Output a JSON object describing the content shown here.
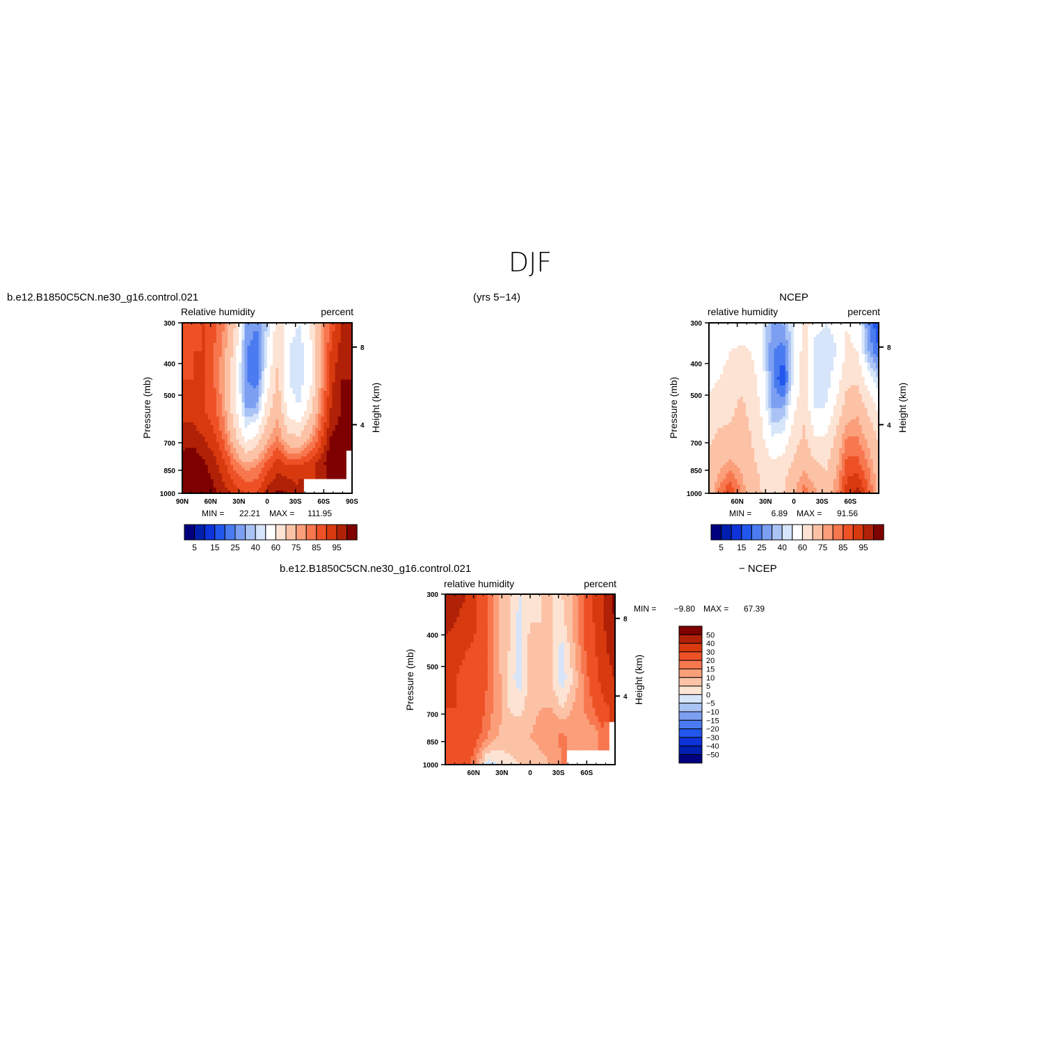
{
  "page": {
    "title": "DJF",
    "case_name": "b.e12.B1850C5CN.ne30_g16.control.021",
    "years": "(yrs 5−14)"
  },
  "colors": {
    "abs_scale": [
      "#00007f",
      "#001fae",
      "#0d33d9",
      "#2257ed",
      "#4a7bf0",
      "#7c9ff2",
      "#aac3f5",
      "#d6e5fa",
      "#ffffff",
      "#fde3d3",
      "#fcc2a6",
      "#fb9e7a",
      "#f7774f",
      "#ee5126",
      "#d83a0f",
      "#b02107",
      "#7f0000"
    ],
    "diff_scale": [
      "#00007f",
      "#001fae",
      "#0d33d9",
      "#2257ed",
      "#4a7bf0",
      "#7c9ff2",
      "#aac3f5",
      "#d6e5fa",
      "#fde3d3",
      "#fcc2a6",
      "#fb9e7a",
      "#f7774f",
      "#ee5126",
      "#d83a0f",
      "#b02107",
      "#7f0000"
    ]
  },
  "chart_data": [
    {
      "type": "heatmap",
      "id": "model",
      "left_title": "b.e12.B1850C5CN.ne30_g16.control.021",
      "center_title": "",
      "subtitle_left": "Relative  humidity",
      "subtitle_right": "percent",
      "ylabel": "Pressure  (mb)",
      "ylabel_right": "Height  (km)",
      "x_ticks": [
        "90N",
        "60N",
        "30N",
        "0",
        "30S",
        "60S",
        "90S"
      ],
      "y_ticks": [
        "300",
        "400",
        "500",
        "700",
        "850",
        "1000"
      ],
      "y_right_ticks": [
        "8",
        "4"
      ],
      "stats": {
        "min_label": "MIN  =",
        "min": "22.21",
        "max_label": "MAX  =",
        "max": "111.95"
      },
      "colorbar_labels": [
        "5",
        "15",
        "25",
        "40",
        "60",
        "75",
        "85",
        "95"
      ],
      "grid_values": [
        [
          80,
          82,
          85,
          82,
          75,
          60,
          30,
          25,
          35,
          55,
          45,
          40,
          50,
          70,
          82,
          90,
          92
        ],
        [
          82,
          85,
          85,
          80,
          72,
          55,
          25,
          22,
          40,
          60,
          40,
          35,
          45,
          68,
          85,
          92,
          95
        ],
        [
          85,
          85,
          85,
          80,
          70,
          50,
          25,
          22,
          45,
          62,
          40,
          35,
          45,
          70,
          88,
          95,
          95
        ],
        [
          88,
          88,
          85,
          82,
          72,
          52,
          30,
          30,
          55,
          68,
          45,
          40,
          55,
          75,
          90,
          95,
          95
        ],
        [
          92,
          92,
          90,
          86,
          78,
          62,
          45,
          52,
          68,
          75,
          62,
          60,
          70,
          82,
          95,
          98,
          95
        ],
        [
          98,
          100,
          96,
          92,
          86,
          78,
          72,
          75,
          82,
          88,
          85,
          85,
          88,
          92,
          100,
          100,
          null
        ],
        [
          105,
          108,
          100,
          96,
          92,
          88,
          85,
          85,
          92,
          96,
          95,
          92,
          null,
          null,
          null,
          null,
          null
        ]
      ]
    },
    {
      "type": "heatmap",
      "id": "ncep",
      "left_title": "",
      "center_title": "NCEP",
      "subtitle_left": "relative  humidity",
      "subtitle_right": "percent",
      "ylabel": "Pressure  (mb)",
      "ylabel_right": "Height  (km)",
      "x_ticks": [
        "60N",
        "30N",
        "0",
        "30S",
        "60S"
      ],
      "y_ticks": [
        "300",
        "400",
        "500",
        "700",
        "850",
        "1000"
      ],
      "y_right_ticks": [
        "8",
        "4"
      ],
      "stats": {
        "min_label": "MIN  =",
        "min": "6.89",
        "max_label": "MAX  =",
        "max": "91.56"
      },
      "colorbar_labels": [
        "5",
        "15",
        "25",
        "40",
        "60",
        "75",
        "85",
        "95"
      ],
      "grid_values": [
        [
          40,
          40,
          42,
          44,
          45,
          40,
          30,
          30,
          40,
          55,
          45,
          40,
          42,
          50,
          45,
          25,
          15
        ],
        [
          42,
          45,
          50,
          52,
          50,
          40,
          25,
          22,
          40,
          55,
          35,
          35,
          40,
          52,
          50,
          30,
          20
        ],
        [
          48,
          50,
          55,
          58,
          55,
          45,
          25,
          15,
          42,
          55,
          35,
          35,
          45,
          58,
          58,
          45,
          35
        ],
        [
          52,
          55,
          58,
          62,
          58,
          48,
          30,
          30,
          48,
          58,
          40,
          40,
          52,
          65,
          68,
          58,
          48
        ],
        [
          58,
          62,
          62,
          62,
          60,
          52,
          40,
          42,
          55,
          62,
          50,
          50,
          62,
          75,
          75,
          68,
          58
        ],
        [
          62,
          68,
          72,
          68,
          62,
          58,
          52,
          55,
          62,
          68,
          62,
          58,
          68,
          82,
          82,
          75,
          65
        ],
        [
          62,
          78,
          85,
          76,
          64,
          60,
          58,
          60,
          70,
          78,
          72,
          66,
          74,
          88,
          92,
          82,
          66
        ]
      ]
    },
    {
      "type": "heatmap",
      "id": "difference",
      "left_title": "b.e12.B1850C5CN.ne30_g16.control.021",
      "center_title": "",
      "right_title": "−  NCEP",
      "subtitle_left": "relative  humidity",
      "subtitle_right": "percent",
      "ylabel": "Pressure  (mb)",
      "ylabel_right": "Height  (km)",
      "x_ticks": [
        "60N",
        "30N",
        "0",
        "30S",
        "60S"
      ],
      "y_ticks": [
        "300",
        "400",
        "500",
        "700",
        "850",
        "1000"
      ],
      "y_right_ticks": [
        "8",
        "4"
      ],
      "stats": {
        "min_label": "MIN  =",
        "min": "−9.80",
        "max_label": "MAX  =",
        "max": "67.39"
      },
      "colorbar_labels": [
        "50",
        "40",
        "30",
        "20",
        "15",
        "10",
        "5",
        "0",
        "−5",
        "−10",
        "−15",
        "−20",
        "−30",
        "−40",
        "−50"
      ],
      "grid_values": [
        [
          50,
          45,
          40,
          30,
          20,
          10,
          5,
          0,
          2,
          5,
          5,
          5,
          10,
          20,
          30,
          40,
          55
        ],
        [
          45,
          40,
          35,
          30,
          20,
          10,
          5,
          -2,
          5,
          5,
          5,
          3,
          10,
          20,
          30,
          40,
          50
        ],
        [
          35,
          32,
          30,
          28,
          20,
          10,
          5,
          -3,
          8,
          10,
          5,
          -2,
          8,
          18,
          28,
          38,
          45
        ],
        [
          30,
          30,
          28,
          25,
          20,
          12,
          3,
          -3,
          8,
          10,
          5,
          -3,
          5,
          15,
          25,
          35,
          40
        ],
        [
          30,
          30,
          28,
          25,
          18,
          12,
          5,
          3,
          8,
          10,
          10,
          5,
          10,
          15,
          20,
          28,
          32
        ],
        [
          28,
          30,
          28,
          22,
          15,
          10,
          8,
          8,
          10,
          12,
          14,
          16,
          14,
          12,
          12,
          18,
          null
        ],
        [
          30,
          30,
          25,
          12,
          -3,
          0,
          3,
          5,
          5,
          8,
          10,
          15,
          null,
          null,
          null,
          null,
          null
        ]
      ]
    }
  ]
}
